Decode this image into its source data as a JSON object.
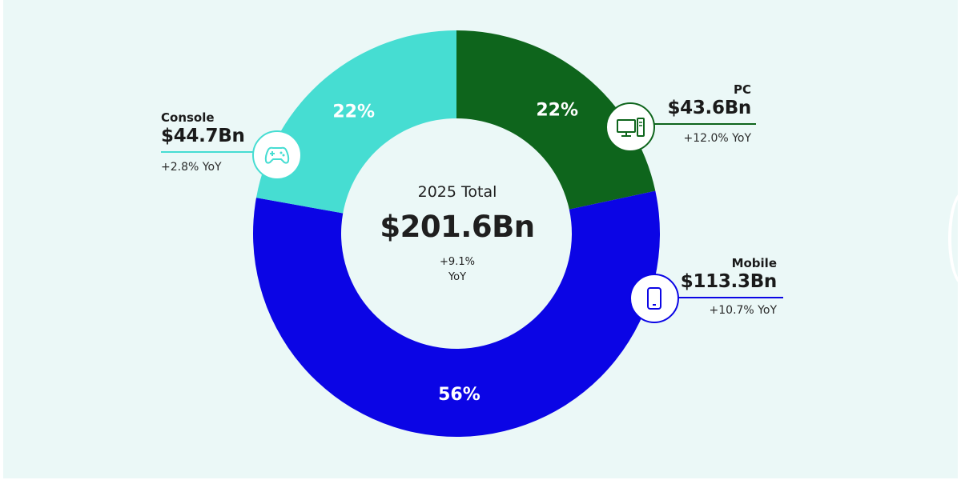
{
  "chart_data": {
    "type": "pie",
    "donut": true,
    "center": {
      "title": "2025 Total",
      "value": "$201.6Bn",
      "change": "+9.1%",
      "period": "YoY"
    },
    "categories": [
      "PC",
      "Mobile",
      "Console"
    ],
    "values": [
      43.6,
      113.3,
      44.7
    ],
    "percent_labels": [
      "22%",
      "56%",
      "22%"
    ],
    "value_labels": [
      "$43.6Bn",
      "$113.3Bn",
      "$44.7Bn"
    ],
    "yoy_labels": [
      "+12.0% YoY",
      "+10.7% YoY",
      "+2.8% YoY"
    ],
    "colors": [
      "#0e651c",
      "#0b05e5",
      "#46ddd2"
    ],
    "icons": [
      "desktop-computer-icon",
      "smartphone-icon",
      "gamepad-icon"
    ],
    "legend": "none"
  }
}
